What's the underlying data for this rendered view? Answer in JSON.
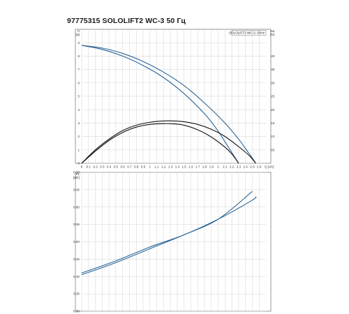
{
  "header": {
    "title": "97775315 SOLOLIFT2 WC-3 50 Гц"
  },
  "colors": {
    "curve_blue": "#2a6496",
    "curve_black": "#111111",
    "grid": "#c8c8c8",
    "frame": "#555555"
  },
  "chart_data": [
    {
      "type": "line",
      "legend": "SOLOLIFT2 WC-3, 50Hz",
      "legend_position": "top-right",
      "grid": true,
      "xlim": [
        0,
        2.7
      ],
      "ylim": [
        0,
        10
      ],
      "y2lim": [
        0,
        0.5
      ],
      "x_ticks": [
        "0",
        "0.1",
        "0.2",
        "0.3",
        "0.4",
        "0.5",
        "0.6",
        "0.7",
        "0.8",
        "0.9",
        "1",
        "1.1",
        "1.2",
        "1.3",
        "1.4",
        "1.5",
        "1.6",
        "1.7",
        "1.8",
        "1.9",
        "2",
        "2.1",
        "2.2",
        "2.3",
        "2.4",
        "2.5",
        "2.6"
      ],
      "x_unit": "Q [л/с]",
      "y_ticks": [
        "0",
        "1",
        "2",
        "3",
        "4",
        "5",
        "6",
        "7",
        "8",
        "9"
      ],
      "y_unit_top": "H",
      "y_unit": "[м]",
      "y2_ticks": [
        ".05",
        ".10",
        ".15",
        ".20",
        ".25",
        ".30",
        ".35",
        ".40"
      ],
      "y2_unit_top": "eta",
      "y2_unit": "[%]",
      "series": [
        {
          "role": "head",
          "axis": "y",
          "color": "#2a6496",
          "x": [
            0,
            0.3,
            0.6,
            0.9,
            1.2,
            1.5,
            1.8,
            2.0,
            2.1,
            2.2,
            2.3
          ],
          "y": [
            8.8,
            8.5,
            8.0,
            7.3,
            6.4,
            5.2,
            3.7,
            2.4,
            1.6,
            0.8,
            0
          ]
        },
        {
          "role": "head",
          "axis": "y",
          "color": "#2a6496",
          "x": [
            0,
            0.3,
            0.6,
            0.9,
            1.2,
            1.5,
            1.8,
            2.1,
            2.3,
            2.4,
            2.5,
            2.55
          ],
          "y": [
            8.8,
            8.6,
            8.2,
            7.6,
            6.8,
            5.8,
            4.5,
            3.0,
            1.8,
            1.1,
            0.4,
            0
          ]
        },
        {
          "role": "efficiency",
          "axis": "y2",
          "color": "#111111",
          "x": [
            0,
            0.2,
            0.4,
            0.6,
            0.8,
            1.0,
            1.2,
            1.35,
            1.5,
            1.7,
            1.9,
            2.1,
            2.2,
            2.3
          ],
          "y": [
            0,
            0.045,
            0.085,
            0.115,
            0.135,
            0.145,
            0.148,
            0.147,
            0.142,
            0.125,
            0.098,
            0.06,
            0.035,
            0
          ]
        },
        {
          "role": "efficiency",
          "axis": "y2",
          "color": "#111111",
          "x": [
            0,
            0.2,
            0.4,
            0.6,
            0.8,
            1.0,
            1.2,
            1.35,
            1.5,
            1.7,
            1.9,
            2.1,
            2.3,
            2.45,
            2.55
          ],
          "y": [
            0,
            0.05,
            0.09,
            0.122,
            0.142,
            0.153,
            0.158,
            0.158,
            0.155,
            0.145,
            0.127,
            0.1,
            0.062,
            0.03,
            0
          ]
        }
      ]
    },
    {
      "type": "line",
      "grid": true,
      "xlim": [
        0,
        2.7
      ],
      "ylim": [
        0.3,
        0.7
      ],
      "x_ticks": [
        "0",
        "0.1",
        "0.2",
        "0.3",
        "0.4",
        "0.5",
        "0.6",
        "0.7",
        "0.8",
        "0.9",
        "1",
        "1.1",
        "1.2",
        "1.3",
        "1.4",
        "1.5",
        "1.6",
        "1.7",
        "1.8",
        "1.9",
        "2",
        "2.1",
        "2.2",
        "2.3",
        "2.4",
        "2.5",
        "2.6"
      ],
      "y_ticks": [
        "0.30",
        "0.35",
        "0.40",
        "0.45",
        "0.50",
        "0.55",
        "0.60",
        "0.65",
        "0.70"
      ],
      "y_unit_top": "P1",
      "y_unit": "[кВт]",
      "series": [
        {
          "role": "power",
          "axis": "y",
          "color": "#2a6496",
          "x": [
            0,
            0.5,
            1.0,
            1.5,
            2.0,
            2.5
          ],
          "y": [
            0.405,
            0.44,
            0.48,
            0.52,
            0.565,
            0.645
          ]
        },
        {
          "role": "power",
          "axis": "y",
          "color": "#2a6496",
          "x": [
            0,
            0.5,
            1.0,
            1.5,
            2.0,
            2.5,
            2.55
          ],
          "y": [
            0.41,
            0.445,
            0.485,
            0.52,
            0.565,
            0.62,
            0.63
          ]
        }
      ]
    }
  ]
}
